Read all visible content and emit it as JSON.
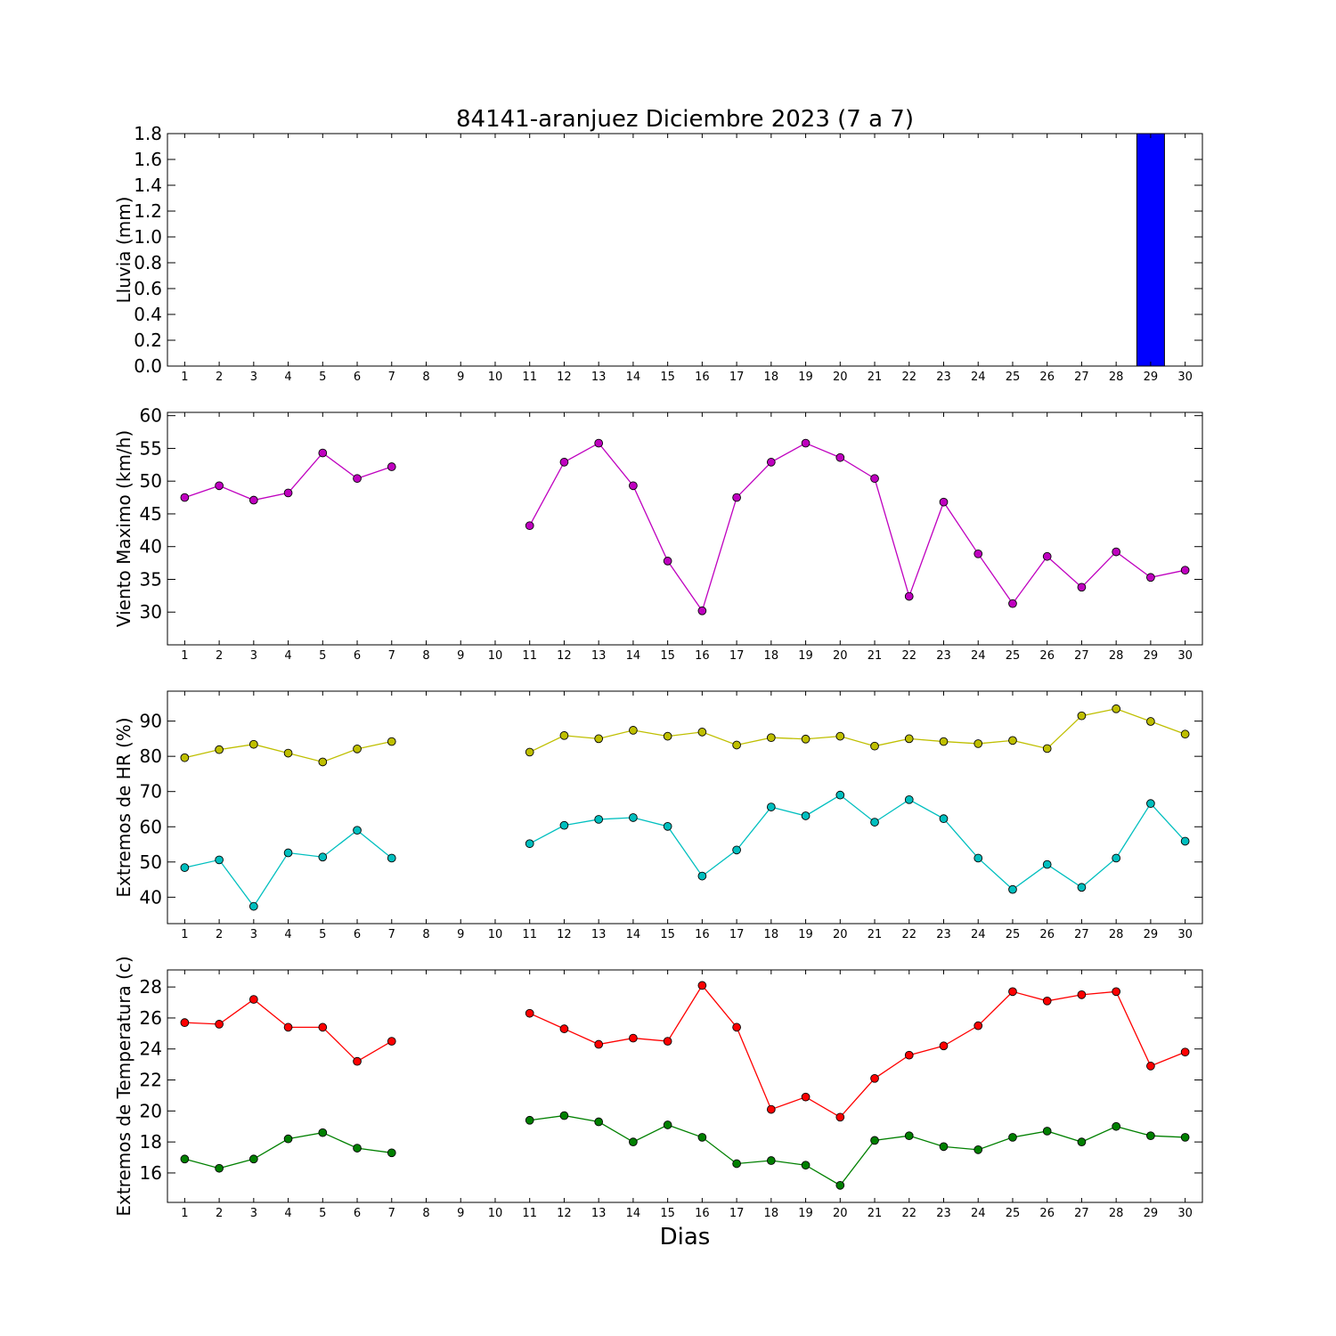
{
  "figure": {
    "title": "84141-aranjuez Diciembre 2023  (7 a 7)",
    "xlabel": "Dias"
  },
  "chart_data": [
    {
      "type": "bar",
      "ylabel": "Lluvia (mm)",
      "ylim": [
        0,
        1.8
      ],
      "yticks": [
        0.0,
        0.2,
        0.4,
        0.6,
        0.8,
        1.0,
        1.2,
        1.4,
        1.6,
        1.8
      ],
      "ytick_decimals": 1,
      "xlim": [
        0.5,
        30.5
      ],
      "x": [
        1,
        2,
        3,
        4,
        5,
        6,
        7,
        8,
        9,
        10,
        11,
        12,
        13,
        14,
        15,
        16,
        17,
        18,
        19,
        20,
        21,
        22,
        23,
        24,
        25,
        26,
        27,
        28,
        29,
        30
      ],
      "series": [
        {
          "color": "#0000ff",
          "values": [
            0,
            0,
            0,
            0,
            0,
            0,
            0,
            null,
            null,
            null,
            0,
            0,
            0,
            0,
            0,
            0,
            0,
            0,
            0,
            0,
            0,
            0,
            0,
            0,
            0,
            0,
            0,
            0,
            1.8,
            0
          ]
        }
      ]
    },
    {
      "type": "line",
      "ylabel": "Viento Maximo (km/h)",
      "ylim": [
        25,
        60.5
      ],
      "yticks": [
        30,
        35,
        40,
        45,
        50,
        55,
        60
      ],
      "ytick_decimals": 0,
      "xlim": [
        0.5,
        30.5
      ],
      "x": [
        1,
        2,
        3,
        4,
        5,
        6,
        7,
        8,
        9,
        10,
        11,
        12,
        13,
        14,
        15,
        16,
        17,
        18,
        19,
        20,
        21,
        22,
        23,
        24,
        25,
        26,
        27,
        28,
        29,
        30
      ],
      "series": [
        {
          "color": "#bf00bf",
          "values": [
            47.5,
            49.3,
            47.1,
            48.2,
            54.3,
            50.4,
            52.2,
            null,
            null,
            null,
            43.2,
            52.9,
            55.8,
            49.3,
            37.8,
            30.2,
            47.5,
            52.9,
            55.8,
            53.6,
            50.4,
            32.4,
            46.8,
            38.9,
            31.3,
            38.5,
            33.8,
            39.2,
            35.3,
            36.4
          ]
        }
      ]
    },
    {
      "type": "line",
      "ylabel": "Extremos de HR (%)",
      "ylim": [
        32.5,
        98.5
      ],
      "yticks": [
        40,
        50,
        60,
        70,
        80,
        90
      ],
      "ytick_decimals": 0,
      "xlim": [
        0.5,
        30.5
      ],
      "x": [
        1,
        2,
        3,
        4,
        5,
        6,
        7,
        8,
        9,
        10,
        11,
        12,
        13,
        14,
        15,
        16,
        17,
        18,
        19,
        20,
        21,
        22,
        23,
        24,
        25,
        26,
        27,
        28,
        29,
        30
      ],
      "series": [
        {
          "color": "#bfbf00",
          "values": [
            79.6,
            81.9,
            83.4,
            80.9,
            78.4,
            82.1,
            84.2,
            null,
            null,
            null,
            81.2,
            85.9,
            85.0,
            87.4,
            85.7,
            86.9,
            83.2,
            85.3,
            84.9,
            85.7,
            82.9,
            85.0,
            84.2,
            83.6,
            84.5,
            82.2,
            91.5,
            93.5,
            89.9,
            86.3
          ]
        },
        {
          "color": "#00bfbf",
          "values": [
            48.4,
            50.6,
            37.4,
            52.6,
            51.4,
            59.0,
            51.1,
            null,
            null,
            null,
            55.2,
            60.4,
            62.1,
            62.6,
            60.1,
            46.0,
            53.4,
            65.6,
            63.1,
            69.0,
            61.3,
            67.7,
            62.3,
            51.1,
            42.2,
            49.3,
            42.8,
            51.1,
            66.6,
            55.9
          ]
        }
      ]
    },
    {
      "type": "line",
      "ylabel": "Extremos de Temperatura (c)",
      "ylim": [
        14.1,
        29.1
      ],
      "yticks": [
        16,
        18,
        20,
        22,
        24,
        26,
        28
      ],
      "ytick_decimals": 0,
      "xlim": [
        0.5,
        30.5
      ],
      "x": [
        1,
        2,
        3,
        4,
        5,
        6,
        7,
        8,
        9,
        10,
        11,
        12,
        13,
        14,
        15,
        16,
        17,
        18,
        19,
        20,
        21,
        22,
        23,
        24,
        25,
        26,
        27,
        28,
        29,
        30
      ],
      "series": [
        {
          "color": "#ff0000",
          "values": [
            25.7,
            25.6,
            27.2,
            25.4,
            25.4,
            23.2,
            24.5,
            null,
            null,
            null,
            26.3,
            25.3,
            24.3,
            24.7,
            24.5,
            28.1,
            25.4,
            20.1,
            20.9,
            19.6,
            22.1,
            23.6,
            24.2,
            25.5,
            27.7,
            27.1,
            27.5,
            27.7,
            22.9,
            23.8
          ]
        },
        {
          "color": "#008000",
          "values": [
            16.9,
            16.3,
            16.9,
            18.2,
            18.6,
            17.6,
            17.3,
            null,
            null,
            null,
            19.4,
            19.7,
            19.3,
            18.0,
            19.1,
            18.3,
            16.6,
            16.8,
            16.5,
            15.2,
            18.1,
            18.4,
            17.7,
            17.5,
            18.3,
            18.7,
            18.0,
            19.0,
            18.4,
            18.3
          ]
        }
      ]
    }
  ]
}
